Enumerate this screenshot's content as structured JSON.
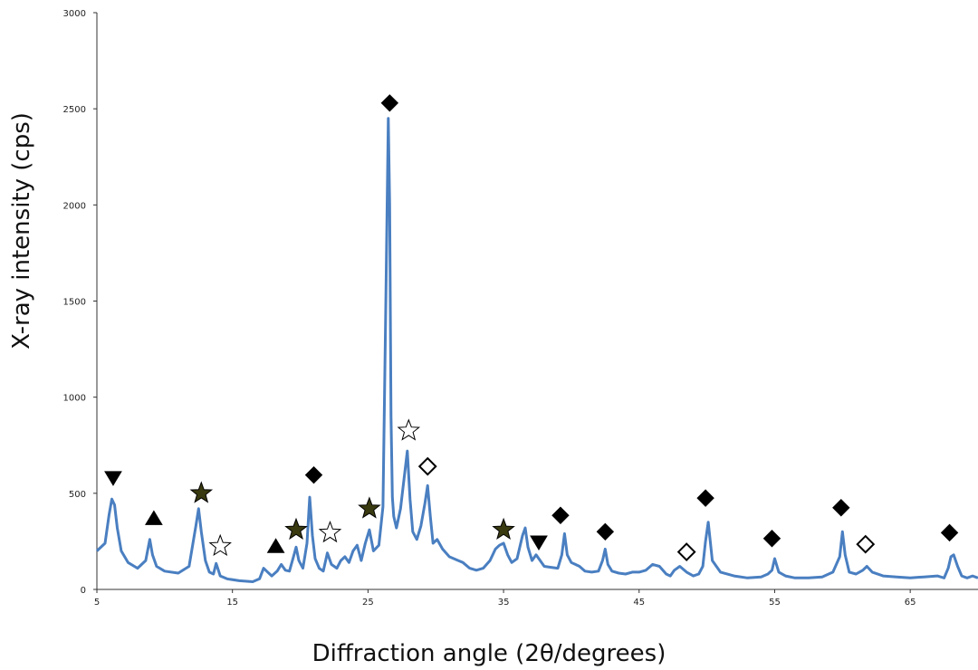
{
  "chart_data": {
    "type": "line",
    "title": "",
    "xlabel": "Diffraction angle (2θ/degrees)",
    "ylabel": "X-ray intensity (cps)",
    "xlim": [
      5,
      70
    ],
    "ylim": [
      0,
      3000
    ],
    "x_ticks": [
      "5",
      "15",
      "25",
      "35",
      "45",
      "55",
      "65"
    ],
    "y_ticks": [
      "0",
      "500",
      "1000",
      "1500",
      "2000",
      "2500",
      "3000"
    ],
    "grid": false,
    "line_color": "#4a7fc1",
    "series": [
      {
        "x": [
          5.0,
          5.6,
          5.9,
          6.1,
          6.3,
          6.5,
          6.8,
          7.3,
          8.0,
          8.6,
          8.9,
          9.1,
          9.4,
          10.0,
          11.0,
          11.8,
          12.3,
          12.5,
          12.7,
          13.0,
          13.3,
          13.6,
          13.8,
          14.1,
          14.6,
          15.5,
          16.5,
          17.0,
          17.3,
          17.6,
          17.9,
          18.3,
          18.6,
          18.9,
          19.2,
          19.5,
          19.7,
          19.9,
          20.2,
          20.5,
          20.7,
          20.9,
          21.1,
          21.4,
          21.7,
          22.0,
          22.3,
          22.7,
          23.0,
          23.3,
          23.6,
          23.9,
          24.2,
          24.5,
          24.8,
          25.1,
          25.4,
          25.8,
          26.1,
          26.3,
          26.5,
          26.6,
          26.7,
          26.8,
          26.9,
          27.1,
          27.4,
          27.7,
          27.9,
          28.1,
          28.3,
          28.6,
          28.9,
          29.2,
          29.4,
          29.6,
          29.8,
          30.1,
          30.5,
          31.0,
          31.5,
          32.0,
          32.5,
          33.0,
          33.5,
          34.0,
          34.4,
          34.7,
          35.0,
          35.3,
          35.6,
          36.0,
          36.4,
          36.6,
          36.8,
          37.1,
          37.4,
          37.7,
          38.0,
          38.5,
          39.0,
          39.3,
          39.5,
          39.7,
          40.0,
          40.3,
          40.6,
          41.0,
          41.5,
          42.0,
          42.3,
          42.5,
          42.7,
          43.0,
          43.5,
          44.0,
          44.5,
          45.0,
          45.5,
          46.0,
          46.5,
          47.0,
          47.3,
          47.6,
          48.0,
          48.5,
          49.0,
          49.4,
          49.7,
          49.9,
          50.1,
          50.4,
          51.0,
          52.0,
          53.0,
          54.0,
          54.5,
          54.8,
          55.0,
          55.3,
          55.8,
          56.5,
          57.5,
          58.5,
          59.3,
          59.8,
          60.0,
          60.2,
          60.5,
          61.0,
          61.5,
          61.8,
          62.2,
          63.0,
          64.0,
          65.0,
          66.0,
          67.0,
          67.5,
          67.8,
          68.0,
          68.2,
          68.5,
          68.8,
          69.2,
          69.6,
          70.0
        ],
        "y": [
          200,
          240,
          390,
          470,
          440,
          320,
          200,
          140,
          110,
          150,
          260,
          180,
          120,
          95,
          85,
          120,
          330,
          420,
          300,
          150,
          90,
          80,
          135,
          70,
          55,
          45,
          40,
          55,
          110,
          90,
          70,
          95,
          130,
          100,
          95,
          170,
          220,
          150,
          110,
          240,
          480,
          280,
          160,
          110,
          95,
          190,
          130,
          110,
          150,
          170,
          140,
          200,
          230,
          150,
          240,
          310,
          200,
          230,
          430,
          1400,
          2450,
          2000,
          900,
          480,
          380,
          320,
          420,
          600,
          720,
          470,
          300,
          260,
          330,
          450,
          540,
          380,
          240,
          260,
          210,
          170,
          155,
          140,
          110,
          100,
          110,
          150,
          210,
          230,
          240,
          180,
          140,
          160,
          280,
          320,
          220,
          150,
          180,
          150,
          120,
          115,
          110,
          180,
          290,
          180,
          140,
          130,
          120,
          95,
          90,
          95,
          150,
          210,
          130,
          95,
          85,
          80,
          90,
          90,
          100,
          130,
          120,
          80,
          70,
          100,
          120,
          90,
          70,
          80,
          120,
          250,
          350,
          150,
          90,
          70,
          60,
          65,
          80,
          100,
          160,
          90,
          70,
          60,
          60,
          65,
          90,
          170,
          300,
          180,
          90,
          80,
          100,
          120,
          90,
          70,
          65,
          60,
          65,
          70,
          60,
          110,
          170,
          180,
          120,
          70,
          60,
          70,
          60
        ]
      }
    ],
    "annotations": [
      {
        "x": 6.2,
        "y": 580,
        "symbol": "triangle-down",
        "fill": "black"
      },
      {
        "x": 9.2,
        "y": 370,
        "symbol": "triangle-up",
        "fill": "black"
      },
      {
        "x": 12.7,
        "y": 500,
        "symbol": "star",
        "fill": "#3a3a10"
      },
      {
        "x": 14.1,
        "y": 225,
        "symbol": "star",
        "fill": "white"
      },
      {
        "x": 18.2,
        "y": 225,
        "symbol": "triangle-up",
        "fill": "black"
      },
      {
        "x": 19.7,
        "y": 310,
        "symbol": "star",
        "fill": "#3a3a10"
      },
      {
        "x": 21.0,
        "y": 595,
        "symbol": "diamond",
        "fill": "black"
      },
      {
        "x": 22.2,
        "y": 295,
        "symbol": "star",
        "fill": "white"
      },
      {
        "x": 25.1,
        "y": 420,
        "symbol": "star",
        "fill": "#3a3a10"
      },
      {
        "x": 26.6,
        "y": 2530,
        "symbol": "diamond",
        "fill": "black"
      },
      {
        "x": 28.0,
        "y": 825,
        "symbol": "star",
        "fill": "white"
      },
      {
        "x": 29.4,
        "y": 640,
        "symbol": "diamond",
        "fill": "white"
      },
      {
        "x": 35.0,
        "y": 310,
        "symbol": "star",
        "fill": "#3a3a10"
      },
      {
        "x": 37.6,
        "y": 245,
        "symbol": "triangle-down",
        "fill": "black"
      },
      {
        "x": 39.2,
        "y": 385,
        "symbol": "diamond",
        "fill": "black"
      },
      {
        "x": 42.5,
        "y": 300,
        "symbol": "diamond",
        "fill": "black"
      },
      {
        "x": 48.5,
        "y": 195,
        "symbol": "diamond",
        "fill": "white"
      },
      {
        "x": 49.9,
        "y": 475,
        "symbol": "diamond",
        "fill": "black"
      },
      {
        "x": 54.8,
        "y": 265,
        "symbol": "diamond",
        "fill": "black"
      },
      {
        "x": 59.9,
        "y": 425,
        "symbol": "diamond",
        "fill": "black"
      },
      {
        "x": 61.7,
        "y": 235,
        "symbol": "diamond",
        "fill": "white"
      },
      {
        "x": 67.9,
        "y": 295,
        "symbol": "diamond",
        "fill": "black"
      }
    ]
  }
}
